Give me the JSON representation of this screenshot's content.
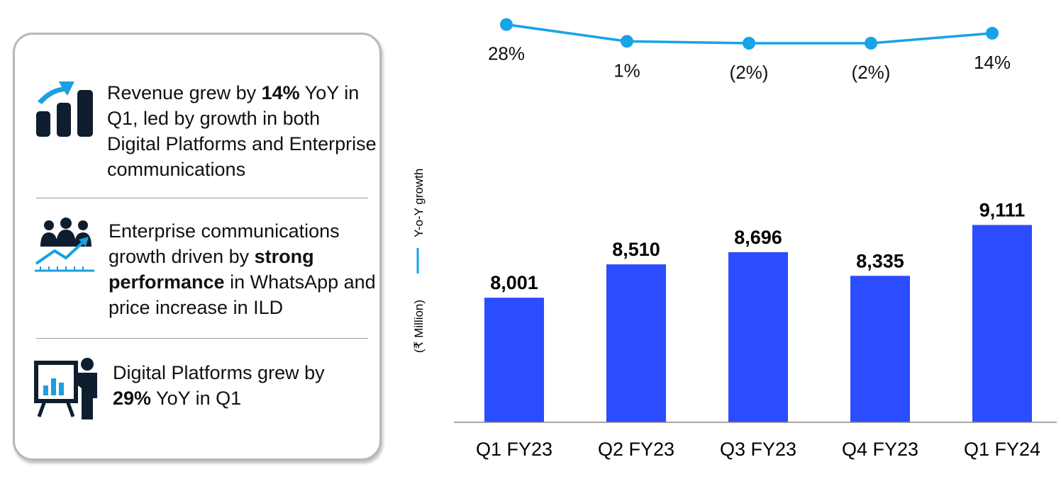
{
  "highlights": [
    {
      "pre": "Revenue grew by ",
      "bold": "14%",
      "post": " YoY in Q1, led by growth in both Digital Platforms and Enterprise communications"
    },
    {
      "pre": "Enterprise communications growth driven by ",
      "bold": "strong performance",
      "post": " in WhatsApp and price increase in ILD"
    },
    {
      "pre": "Digital Platforms grew by ",
      "bold": "29%",
      "post": " YoY in Q1"
    }
  ],
  "colors": {
    "bar": "#2b4cff",
    "growth_line": "#16a3e8",
    "icon_dark": "#0f1e2e",
    "icon_accent": "#1a9fe0"
  },
  "chart_data": {
    "type": "bar",
    "categories": [
      "Q1 FY23",
      "Q2 FY23",
      "Q3 FY23",
      "Q4 FY23",
      "Q1 FY24"
    ],
    "series": [
      {
        "values": [
          8001,
          8510,
          8696,
          8335,
          9111
        ],
        "labels": [
          "8,001",
          "8,510",
          "8,696",
          "8,335",
          "9,111"
        ]
      }
    ],
    "growth": {
      "values": [
        28,
        1,
        -2,
        -2,
        14
      ],
      "labels": [
        "28%",
        "1%",
        "(2%)",
        "(2%)",
        "14%"
      ]
    },
    "legend": {
      "unit": "(₹ Million)",
      "growth": "Y-o-Y growth"
    }
  }
}
